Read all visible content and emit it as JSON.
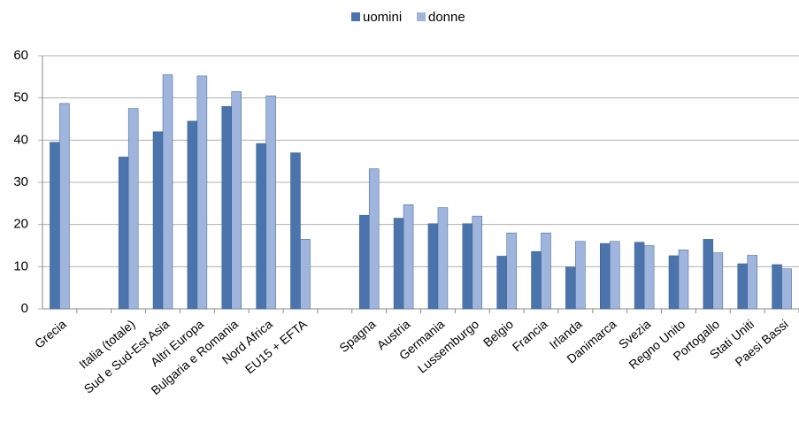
{
  "chart_data": {
    "type": "bar",
    "categories": [
      "Grecia",
      null,
      "Italia (totale)",
      "Sud e Sud-Est Asia",
      "Altri Europa",
      "Bulgaria e Romania",
      "Nord Africa",
      "EU15 + EFTA",
      null,
      "Spagna",
      "Austria",
      "Germania",
      "Lussemburgo",
      "Belgio",
      "Francia",
      "Irlanda",
      "Danimarca",
      "Svezia",
      "Regno Unito",
      "Portogallo",
      "Stati Uniti",
      "Paesi Bassi"
    ],
    "series": [
      {
        "name": "uomini",
        "color": "#4a74ab",
        "values": [
          39.5,
          null,
          36,
          42,
          44.5,
          48,
          39.2,
          37,
          null,
          22.2,
          21.5,
          20.2,
          20.2,
          12.5,
          13.6,
          9.9,
          15.5,
          15.8,
          12.6,
          16.5,
          10.7,
          10.5
        ]
      },
      {
        "name": "donne",
        "color": "#9fb5dd",
        "values": [
          48.7,
          null,
          47.5,
          55.5,
          55.2,
          51.5,
          50.5,
          16.5,
          null,
          33.2,
          24.7,
          24,
          22,
          18,
          18,
          16,
          16,
          15,
          14,
          13.3,
          12.7,
          9.5
        ]
      }
    ],
    "ylim": [
      0,
      60
    ],
    "yticks": [
      0,
      10,
      20,
      30,
      40,
      50,
      60
    ],
    "grid": true,
    "legend": "top"
  }
}
